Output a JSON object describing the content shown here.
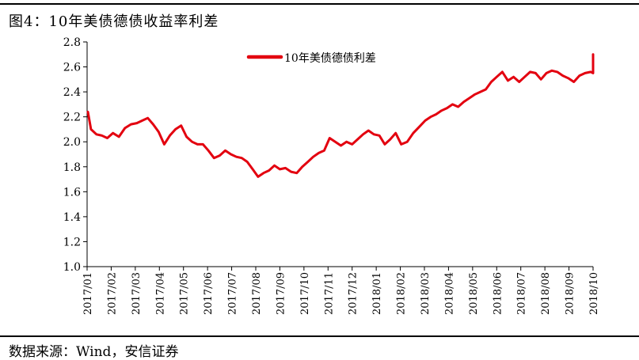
{
  "figure": {
    "title": "图4：10年美债德债收益率利差",
    "source": "数据来源：Wind，安信证券"
  },
  "chart_data": {
    "type": "line",
    "title": "",
    "xlabel": "",
    "ylabel": "",
    "ylim": [
      1.0,
      2.8
    ],
    "yticks": [
      "1.0",
      "1.2",
      "1.4",
      "1.6",
      "1.8",
      "2.0",
      "2.2",
      "2.4",
      "2.6",
      "2.8"
    ],
    "xticks": [
      "2017/01",
      "2017/02",
      "2017/03",
      "2017/04",
      "2017/05",
      "2017/06",
      "2017/07",
      "2017/08",
      "2017/09",
      "2017/10",
      "2017/11",
      "2017/12",
      "2018/01",
      "2018/02",
      "2018/03",
      "2018/04",
      "2018/05",
      "2018/06",
      "2018/07",
      "2018/08",
      "2018/09",
      "2018/10"
    ],
    "grid": false,
    "legend": "top-center",
    "series": [
      {
        "name": "10年美债德债利差",
        "color": "#e3000f",
        "x": [
          "2017-01-02",
          "2017-01-06",
          "2017-01-13",
          "2017-01-20",
          "2017-01-27",
          "2017-02-03",
          "2017-02-10",
          "2017-02-17",
          "2017-02-24",
          "2017-03-03",
          "2017-03-10",
          "2017-03-17",
          "2017-03-24",
          "2017-03-31",
          "2017-04-07",
          "2017-04-14",
          "2017-04-21",
          "2017-04-28",
          "2017-05-05",
          "2017-05-12",
          "2017-05-19",
          "2017-05-26",
          "2017-06-02",
          "2017-06-09",
          "2017-06-16",
          "2017-06-23",
          "2017-06-30",
          "2017-07-07",
          "2017-07-14",
          "2017-07-21",
          "2017-07-28",
          "2017-08-04",
          "2017-08-11",
          "2017-08-18",
          "2017-08-25",
          "2017-09-01",
          "2017-09-08",
          "2017-09-15",
          "2017-09-22",
          "2017-09-29",
          "2017-10-06",
          "2017-10-13",
          "2017-10-20",
          "2017-10-27",
          "2017-11-03",
          "2017-11-10",
          "2017-11-17",
          "2017-11-24",
          "2017-12-01",
          "2017-12-08",
          "2017-12-15",
          "2017-12-22",
          "2017-12-29",
          "2018-01-05",
          "2018-01-12",
          "2018-01-19",
          "2018-01-26",
          "2018-02-02",
          "2018-02-09",
          "2018-02-16",
          "2018-02-23",
          "2018-03-02",
          "2018-03-09",
          "2018-03-16",
          "2018-03-23",
          "2018-03-30",
          "2018-04-06",
          "2018-04-13",
          "2018-04-20",
          "2018-04-27",
          "2018-05-04",
          "2018-05-11",
          "2018-05-18",
          "2018-05-25",
          "2018-06-01",
          "2018-06-08",
          "2018-06-15",
          "2018-06-22",
          "2018-06-29",
          "2018-07-06",
          "2018-07-13",
          "2018-07-20",
          "2018-07-27",
          "2018-08-03",
          "2018-08-10",
          "2018-08-17",
          "2018-08-24",
          "2018-08-31",
          "2018-09-07",
          "2018-09-14",
          "2018-09-21",
          "2018-09-28",
          "2018-10-05",
          "2018-10-10"
        ],
        "values": [
          2.24,
          2.1,
          2.06,
          2.05,
          2.03,
          2.07,
          2.04,
          2.11,
          2.14,
          2.15,
          2.17,
          2.19,
          2.14,
          2.08,
          1.98,
          2.05,
          2.1,
          2.13,
          2.04,
          2.0,
          1.98,
          1.98,
          1.93,
          1.87,
          1.89,
          1.93,
          1.9,
          1.88,
          1.87,
          1.84,
          1.78,
          1.72,
          1.75,
          1.77,
          1.81,
          1.78,
          1.79,
          1.76,
          1.75,
          1.8,
          1.84,
          1.88,
          1.91,
          1.93,
          2.03,
          2.0,
          1.97,
          2.0,
          1.98,
          2.02,
          2.06,
          2.09,
          2.06,
          2.05,
          1.98,
          2.02,
          2.07,
          1.98,
          2.0,
          2.07,
          2.12,
          2.17,
          2.2,
          2.22,
          2.25,
          2.27,
          2.3,
          2.28,
          2.32,
          2.35,
          2.38,
          2.4,
          2.42,
          2.48,
          2.52,
          2.56,
          2.49,
          2.52,
          2.48,
          2.52,
          2.56,
          2.55,
          2.5,
          2.55,
          2.57,
          2.56,
          2.53,
          2.51,
          2.48,
          2.53,
          2.55,
          2.56,
          2.55,
          2.7
        ]
      }
    ]
  }
}
